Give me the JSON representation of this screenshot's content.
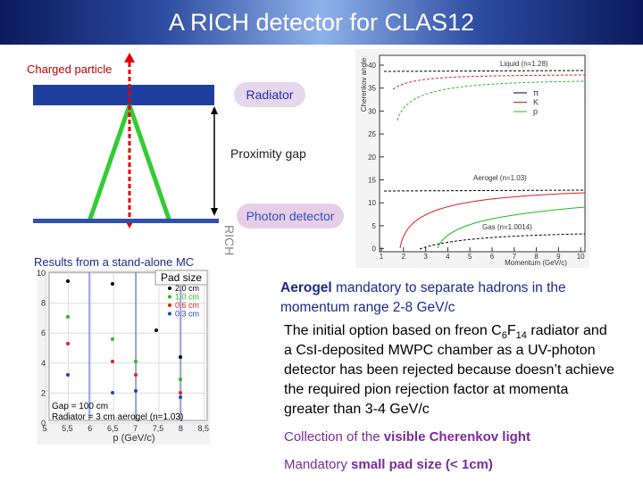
{
  "header": {
    "title": "A RICH detector for CLAS12"
  },
  "diagram": {
    "particle_label": "Charged particle",
    "radiator_label": "Radiator",
    "gap_label": "Proximity gap",
    "detector_label": "Photon detector",
    "side_label": "RICH"
  },
  "mc_plot": {
    "caption": "Results from a stand-alone MC",
    "legend_title": "Pad size",
    "legend": [
      "2.0 cm",
      "1.0 cm",
      "0.6 cm",
      "0.3 cm"
    ],
    "note_lines": [
      "Gap = 100 cm",
      "Radiator = 3 cm aerogel (n=1.03)"
    ],
    "x_label": "p (GeV/c)",
    "x_ticks": [
      "5",
      "5,5",
      "6",
      "6,5",
      "7",
      "7,5",
      "8",
      "8,5"
    ],
    "y_ticks": [
      "10",
      "8",
      "6",
      "4",
      "2",
      "0"
    ]
  },
  "angle_plot": {
    "y_label": "Cherenkov angle",
    "x_label": "Momentum (GeV/c)",
    "y_ticks": [
      "40",
      "35",
      "30",
      "25",
      "20",
      "15",
      "10",
      "5",
      "0"
    ],
    "x_ticks": [
      "1",
      "2",
      "3",
      "4",
      "5",
      "6",
      "7",
      "8",
      "9",
      "10"
    ],
    "legend": [
      "π",
      "K",
      "p"
    ],
    "curve_labels": [
      "Liquid (n=1.28)",
      "Aerogel (n=1.03)",
      "Gas (n=1.0014)"
    ]
  },
  "body": {
    "aerogel": {
      "bold": "Aerogel",
      "rest": " mandatory to separate hadrons in the momentum range 2-8 GeV/c"
    },
    "initial_option": {
      "parts": [
        "The initial option based on  freon C",
        "6",
        "F",
        "14",
        " radiator and a CsI-deposited MWPC chamber as a UV-photon detector has been rejected because doesn’t  achieve the required pion rejection factor at momenta greater than 3-4 GeV/c"
      ]
    },
    "collection": {
      "plain": "Collection of the ",
      "bold": "visible Cherenkov light"
    },
    "pad": {
      "plain": "Mandatory ",
      "bold": "small pad size (< 1cm)"
    }
  }
}
